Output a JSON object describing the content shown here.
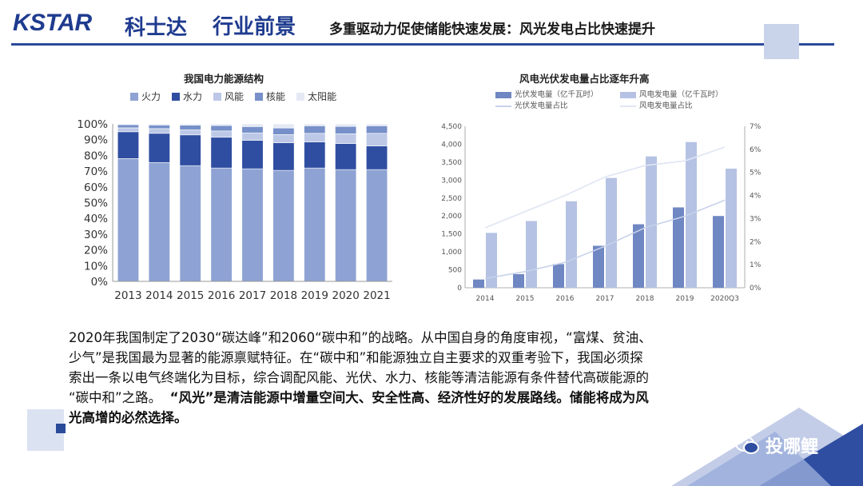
{
  "header": {
    "logo_en": "KSTAR",
    "logo_cn": "科士达",
    "section": "行业前景",
    "subtitle": "多重驱动力促使储能快速发展：风光发电占比快速提升"
  },
  "colors": {
    "brand": "#1e3b8f",
    "accent": "#2a4a9a"
  },
  "chart_data": [
    {
      "type": "bar",
      "stacked": true,
      "title": "我国电力能源结构",
      "categories": [
        "2013",
        "2014",
        "2015",
        "2016",
        "2017",
        "2018",
        "2019",
        "2020",
        "2021"
      ],
      "y_ticks": [
        "0%",
        "10%",
        "20%",
        "30%",
        "40%",
        "50%",
        "60%",
        "70%",
        "80%",
        "90%",
        "100%"
      ],
      "ylim": [
        0,
        100
      ],
      "series": [
        {
          "name": "火力",
          "values": [
            78,
            75.5,
            73.5,
            72,
            71.5,
            70.5,
            72,
            71,
            71
          ],
          "color": "#8ea3d3"
        },
        {
          "name": "水力",
          "values": [
            17,
            18.5,
            19.5,
            19.5,
            18,
            17.5,
            16.5,
            16.5,
            15
          ],
          "color": "#2f4ea1"
        },
        {
          "name": "风能",
          "values": [
            2.5,
            3,
            3.2,
            4,
            4.8,
            5.2,
            5.5,
            6.2,
            8
          ],
          "color": "#bcc8e6"
        },
        {
          "name": "核能",
          "values": [
            2,
            2.3,
            3,
            3.5,
            4,
            4.2,
            4.8,
            4.7,
            4.8
          ],
          "color": "#7790c9"
        },
        {
          "name": "太阳能",
          "values": [
            0.5,
            0.7,
            0.8,
            1,
            1.7,
            2.6,
            1.2,
            1.6,
            1.2
          ],
          "color": "#e4e9f4"
        }
      ]
    },
    {
      "type": "bar+line",
      "title": "风电光伏发电量占比逐年升高",
      "categories": [
        "2014",
        "2015",
        "2016",
        "2017",
        "2018",
        "2019",
        "2020Q3"
      ],
      "y_left_ticks": [
        "0",
        "500",
        "1,000",
        "1,500",
        "2,000",
        "2,500",
        "3,000",
        "3,500",
        "4,000",
        "4,500"
      ],
      "y_right_ticks": [
        "0%",
        "1%",
        "2%",
        "3%",
        "4%",
        "5%",
        "6%",
        "7%"
      ],
      "ylim_left": [
        0,
        4500
      ],
      "ylim_right": [
        0,
        7
      ],
      "series": [
        {
          "name": "光伏发电量（亿千瓦时）",
          "kind": "bar",
          "axis": "left",
          "values": [
            230,
            380,
            660,
            1170,
            1770,
            2240,
            2000
          ],
          "color": "#6f87c2"
        },
        {
          "name": "风电发电量（亿千瓦时）",
          "kind": "bar",
          "axis": "left",
          "values": [
            1530,
            1860,
            2410,
            3060,
            3660,
            4060,
            3320
          ],
          "color": "#b5c2e3"
        },
        {
          "name": "光伏发电量占比",
          "kind": "line",
          "axis": "right",
          "values": [
            0.4,
            0.7,
            1.1,
            1.8,
            2.6,
            3.1,
            3.8
          ],
          "color": "#c7d1ea"
        },
        {
          "name": "风电发电量占比",
          "kind": "line",
          "axis": "right",
          "values": [
            2.6,
            3.3,
            4.0,
            4.8,
            5.3,
            5.5,
            6.1
          ],
          "color": "#dfe5f3"
        }
      ]
    }
  ],
  "body": {
    "line1": "2020年我国制定了2030“碳达峰”和2060“碳中和”的战略。从中国自身的角度审视，“富煤、贫油、",
    "line2": "少气”是我国最为显著的能源禀赋特征。在“碳中和”和能源独立自主要求的双重考验下，我国必须探",
    "line3": "索出一条以电气终端化为目标，综合调配风能、光伏、水力、核能等清洁能源有条件替代高碳能源的",
    "line4_normal": "“碳中和”之路。",
    "line4_bold": "“风光”是清洁能源中增量空间大、安全性高、经济性好的发展路线。储能将成为风",
    "line5_bold": "光高增的必然选择。"
  },
  "watermark": {
    "text": "投哪鲤",
    "icon": "wechat-icon"
  }
}
